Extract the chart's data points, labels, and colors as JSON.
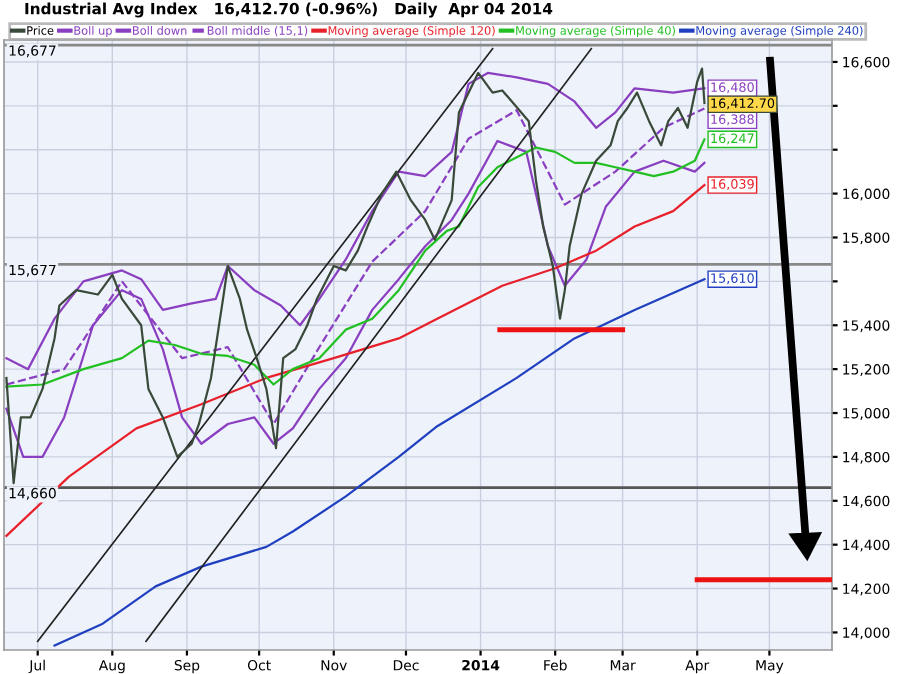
{
  "chart_data": {
    "type": "line",
    "title": "Industrial Avg Index   16,412.70 (-0.96%)   Daily  Apr 04 2014",
    "xlim": [
      "2013-06-17",
      "2014-05-27"
    ],
    "xticks": [
      {
        "value": "2013-07-01",
        "label": "Jul"
      },
      {
        "value": "2013-08-01",
        "label": "Aug"
      },
      {
        "value": "2013-09-01",
        "label": "Sep"
      },
      {
        "value": "2013-10-01",
        "label": "Oct"
      },
      {
        "value": "2013-11-01",
        "label": "Nov"
      },
      {
        "value": "2013-12-01",
        "label": "Dec"
      },
      {
        "value": "2014-01-01",
        "label": "2014"
      },
      {
        "value": "2014-02-01",
        "label": "Feb"
      },
      {
        "value": "2014-03-01",
        "label": "Mar"
      },
      {
        "value": "2014-04-01",
        "label": "Apr"
      },
      {
        "value": "2014-05-01",
        "label": "May"
      }
    ],
    "ylim": [
      13920,
      16700
    ],
    "yticks": [
      {
        "value": 14000,
        "label": "14,000"
      },
      {
        "value": 14200,
        "label": "14,200"
      },
      {
        "value": 14400,
        "label": "14,400"
      },
      {
        "value": 14600,
        "label": "14,600"
      },
      {
        "value": 14800,
        "label": "14,800"
      },
      {
        "value": 15000,
        "label": "15,000"
      },
      {
        "value": 15200,
        "label": "15,200"
      },
      {
        "value": 15400,
        "label": "15,400"
      },
      {
        "value": 15600,
        "label": null
      },
      {
        "value": 15800,
        "label": "15,800"
      },
      {
        "value": 16000,
        "label": "16,000"
      },
      {
        "value": 16200,
        "label": null
      },
      {
        "value": 16400,
        "label": null
      },
      {
        "value": 16600,
        "label": "16,600"
      }
    ],
    "grid": true,
    "legend": "top left",
    "ref_lines": [
      {
        "axis": "y",
        "value": 16677,
        "label": "16,677",
        "color": "#888888"
      },
      {
        "axis": "y",
        "value": 15677,
        "label": "15,677",
        "color": "#888888"
      },
      {
        "axis": "y",
        "value": 14660,
        "label": "14,660",
        "color": "#555555"
      }
    ],
    "series": [
      {
        "name": "Price",
        "color": "#3a4a3a",
        "x": [
          "2013-06-18",
          "2013-06-21",
          "2013-06-24",
          "2013-06-28",
          "2013-07-03",
          "2013-07-08",
          "2013-07-10",
          "2013-07-17",
          "2013-07-26",
          "2013-08-01",
          "2013-08-05",
          "2013-08-13",
          "2013-08-16",
          "2013-08-22",
          "2013-08-28",
          "2013-09-03",
          "2013-09-06",
          "2013-09-11",
          "2013-09-16",
          "2013-09-18",
          "2013-09-23",
          "2013-09-26",
          "2013-09-30",
          "2013-10-04",
          "2013-10-08",
          "2013-10-11",
          "2013-10-16",
          "2013-10-21",
          "2013-10-25",
          "2013-11-01",
          "2013-11-06",
          "2013-11-11",
          "2013-11-15",
          "2013-11-21",
          "2013-11-27",
          "2013-12-03",
          "2013-12-09",
          "2013-12-13",
          "2013-12-20",
          "2013-12-23",
          "2013-12-31",
          "2014-01-06",
          "2014-01-10",
          "2014-01-14",
          "2014-01-21",
          "2014-01-24",
          "2014-01-27",
          "2014-01-31",
          "2014-02-03",
          "2014-02-05",
          "2014-02-07",
          "2014-02-12",
          "2014-02-18",
          "2014-02-24",
          "2014-02-27",
          "2014-03-03",
          "2014-03-07",
          "2014-03-12",
          "2014-03-17",
          "2014-03-20",
          "2014-03-24",
          "2014-03-28",
          "2014-04-01",
          "2014-04-03",
          "2014-04-04"
        ],
        "values": [
          15160,
          14680,
          14980,
          14980,
          15110,
          15340,
          15490,
          15560,
          15540,
          15630,
          15520,
          15400,
          15110,
          14980,
          14800,
          14860,
          14950,
          15160,
          15520,
          15670,
          15520,
          15380,
          15250,
          15110,
          14840,
          15250,
          15290,
          15400,
          15520,
          15670,
          15650,
          15740,
          15850,
          16000,
          16100,
          15970,
          15880,
          15790,
          15970,
          16370,
          16550,
          16460,
          16470,
          16420,
          16330,
          16060,
          15850,
          15670,
          15430,
          15560,
          15760,
          16000,
          16150,
          16220,
          16330,
          16390,
          16460,
          16330,
          16220,
          16330,
          16390,
          16300,
          16510,
          16570,
          16412.7
        ],
        "value_labels": [
          null,
          null,
          null,
          null,
          null,
          null,
          null,
          null,
          null,
          null,
          null,
          null,
          null,
          null,
          null,
          null,
          null,
          null,
          null,
          null,
          null,
          null,
          null,
          null,
          null,
          null,
          null,
          null,
          null,
          null,
          null,
          null,
          null,
          null,
          null,
          null,
          null,
          null,
          null,
          null,
          null,
          null,
          null,
          null,
          null,
          null,
          null,
          null,
          null,
          null,
          null,
          null,
          null,
          null,
          null,
          null,
          null,
          null,
          null,
          null,
          null,
          null,
          null,
          null,
          "16,412.70"
        ]
      },
      {
        "name": "Boll up",
        "color": "#8a3fc0",
        "x": [
          "2013-06-18",
          "2013-06-27",
          "2013-07-08",
          "2013-07-20",
          "2013-08-05",
          "2013-08-13",
          "2013-08-22",
          "2013-09-03",
          "2013-09-13",
          "2013-09-18",
          "2013-09-29",
          "2013-10-10",
          "2013-10-18",
          "2013-10-26",
          "2013-11-06",
          "2013-11-17",
          "2013-11-28",
          "2013-12-09",
          "2013-12-20",
          "2013-12-27",
          "2014-01-04",
          "2014-01-16",
          "2014-01-29",
          "2014-02-09",
          "2014-02-18",
          "2014-02-26",
          "2014-03-06",
          "2014-03-22",
          "2014-04-04"
        ],
        "values": [
          15250,
          15200,
          15430,
          15600,
          15650,
          15610,
          15470,
          15500,
          15520,
          15670,
          15560,
          15490,
          15400,
          15520,
          15700,
          15920,
          16100,
          16080,
          16190,
          16500,
          16550,
          16530,
          16500,
          16420,
          16300,
          16370,
          16480,
          16460,
          16480
        ],
        "value_labels": [
          null,
          null,
          null,
          null,
          null,
          null,
          null,
          null,
          null,
          null,
          null,
          null,
          null,
          null,
          null,
          null,
          null,
          null,
          null,
          null,
          null,
          null,
          null,
          null,
          null,
          null,
          null,
          null,
          "16,480"
        ]
      },
      {
        "name": "Boll down",
        "color": "#8a3fc0",
        "x": [
          "2013-06-18",
          "2013-06-25",
          "2013-07-03",
          "2013-07-12",
          "2013-07-24",
          "2013-08-05",
          "2013-08-13",
          "2013-08-22",
          "2013-08-30",
          "2013-09-07",
          "2013-09-18",
          "2013-09-29",
          "2013-10-07",
          "2013-10-15",
          "2013-10-26",
          "2013-11-06",
          "2013-11-17",
          "2013-11-28",
          "2013-12-09",
          "2013-12-20",
          "2013-12-27",
          "2014-01-08",
          "2014-01-20",
          "2014-01-29",
          "2014-02-05",
          "2014-02-14",
          "2014-02-22",
          "2014-03-06",
          "2014-03-18",
          "2014-03-31",
          "2014-04-04"
        ],
        "values": [
          15020,
          14800,
          14800,
          14980,
          15400,
          15560,
          15520,
          15290,
          14980,
          14860,
          14950,
          14980,
          14860,
          14930,
          15110,
          15250,
          15470,
          15610,
          15760,
          15880,
          16000,
          16240,
          16190,
          15760,
          15580,
          15700,
          15940,
          16100,
          16150,
          16100,
          16140
        ]
      },
      {
        "name": "Boll middle (15,1)",
        "color": "#8a3fc0",
        "line_style": "dashed",
        "x": [
          "2013-06-18",
          "2013-07-12",
          "2013-08-05",
          "2013-08-30",
          "2013-09-18",
          "2013-10-07",
          "2013-10-26",
          "2013-11-17",
          "2013-12-09",
          "2013-12-27",
          "2014-01-16",
          "2014-02-05",
          "2014-02-26",
          "2014-03-18",
          "2014-04-04"
        ],
        "values": [
          15130,
          15200,
          15600,
          15250,
          15300,
          14950,
          15300,
          15690,
          15920,
          16250,
          16380,
          15950,
          16100,
          16300,
          16388
        ],
        "value_labels": [
          null,
          null,
          null,
          null,
          null,
          null,
          null,
          null,
          null,
          null,
          null,
          null,
          null,
          null,
          "16,388"
        ]
      },
      {
        "name": "Moving average (Simple 120)",
        "color": "#e8202a",
        "x": [
          "2013-06-18",
          "2013-07-14",
          "2013-08-11",
          "2013-09-07",
          "2013-10-04",
          "2013-11-01",
          "2013-11-28",
          "2013-12-14",
          "2014-01-10",
          "2014-02-01",
          "2014-02-18",
          "2014-03-06",
          "2014-03-22",
          "2014-04-04"
        ],
        "values": [
          14440,
          14710,
          14930,
          15040,
          15160,
          15250,
          15340,
          15430,
          15580,
          15660,
          15740,
          15850,
          15920,
          16039
        ],
        "value_labels": [
          null,
          null,
          null,
          null,
          null,
          null,
          null,
          null,
          null,
          null,
          null,
          null,
          null,
          "16,039"
        ]
      },
      {
        "name": "Moving average (Simple 40)",
        "color": "#22c022",
        "x": [
          "2013-06-18",
          "2013-07-03",
          "2013-07-20",
          "2013-08-05",
          "2013-08-16",
          "2013-08-27",
          "2013-09-07",
          "2013-09-18",
          "2013-09-29",
          "2013-10-07",
          "2013-10-15",
          "2013-10-26",
          "2013-11-06",
          "2013-11-17",
          "2013-11-28",
          "2013-12-09",
          "2013-12-18",
          "2013-12-23",
          "2013-12-31",
          "2014-01-08",
          "2014-01-24",
          "2014-02-01",
          "2014-02-09",
          "2014-02-18",
          "2014-02-26",
          "2014-03-06",
          "2014-03-14",
          "2014-03-22",
          "2014-03-31",
          "2014-04-04"
        ],
        "values": [
          15120,
          15130,
          15200,
          15250,
          15330,
          15310,
          15270,
          15260,
          15220,
          15130,
          15200,
          15250,
          15380,
          15430,
          15560,
          15740,
          15830,
          15850,
          16030,
          16120,
          16210,
          16190,
          16140,
          16140,
          16120,
          16100,
          16080,
          16100,
          16150,
          16247
        ],
        "value_labels": [
          null,
          null,
          null,
          null,
          null,
          null,
          null,
          null,
          null,
          null,
          null,
          null,
          null,
          null,
          null,
          null,
          null,
          null,
          null,
          null,
          null,
          null,
          null,
          null,
          null,
          null,
          null,
          null,
          null,
          "16,247"
        ]
      },
      {
        "name": "Moving average (Simple 240)",
        "color": "#2040c0",
        "x": [
          "2013-07-08",
          "2013-07-28",
          "2013-08-19",
          "2013-09-07",
          "2013-10-04",
          "2013-10-15",
          "2013-11-06",
          "2013-11-28",
          "2013-12-14",
          "2014-01-16",
          "2014-02-09",
          "2014-03-06",
          "2014-04-04"
        ],
        "values": [
          13940,
          14040,
          14210,
          14300,
          14390,
          14460,
          14620,
          14800,
          14940,
          15160,
          15340,
          15470,
          15610
        ],
        "value_labels": [
          null,
          null,
          null,
          null,
          null,
          null,
          null,
          null,
          null,
          null,
          null,
          null,
          "15,610"
        ]
      },
      {
        "color": "#222222",
        "x": [
          "2013-07-01",
          "2014-01-06"
        ],
        "values": [
          13960,
          16660
        ]
      },
      {
        "color": "#222222",
        "x": [
          "2013-08-15",
          "2014-02-16"
        ],
        "values": [
          13960,
          16660
        ]
      },
      {
        "color": "#ee1111",
        "x": [
          "2014-01-09",
          "2014-03-01"
        ],
        "values": [
          15380,
          15380
        ]
      },
      {
        "color": "#ee1111",
        "x": [
          "2014-04-01",
          "2014-05-27"
        ],
        "values": [
          14240,
          14240
        ]
      }
    ]
  }
}
